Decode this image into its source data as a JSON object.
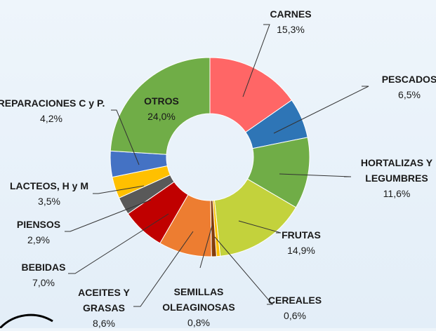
{
  "chart_data": {
    "type": "donut",
    "categories": [
      "CARNES",
      "PESCADOS",
      "HORTALIZAS Y LEGUMBRES",
      "FRUTAS",
      "CEREALES",
      "SEMILLAS OLEAGINOSAS",
      "ACEITES Y GRASAS",
      "BEBIDAS",
      "PIENSOS",
      "LACTEOS, H y M",
      "REPARACIONES C y P.",
      "OTROS"
    ],
    "values": [
      15.3,
      6.5,
      11.6,
      14.9,
      0.6,
      0.8,
      8.6,
      7.0,
      2.9,
      3.5,
      4.2,
      24.0
    ],
    "value_labels": [
      "15,3%",
      "6,5%",
      "11,6%",
      "14,9%",
      "0,6%",
      "0,8%",
      "8,6%",
      "7,0%",
      "2,9%",
      "3,5%",
      "4,2%",
      "24,0%"
    ],
    "colors": [
      "#ff6666",
      "#2e75b6",
      "#70ad47",
      "#c3d23c",
      "#ffc000",
      "#843c0c",
      "#ed7d31",
      "#c00000",
      "#595959",
      "#ffc000",
      "#4472c4",
      "#70ad47"
    ]
  }
}
